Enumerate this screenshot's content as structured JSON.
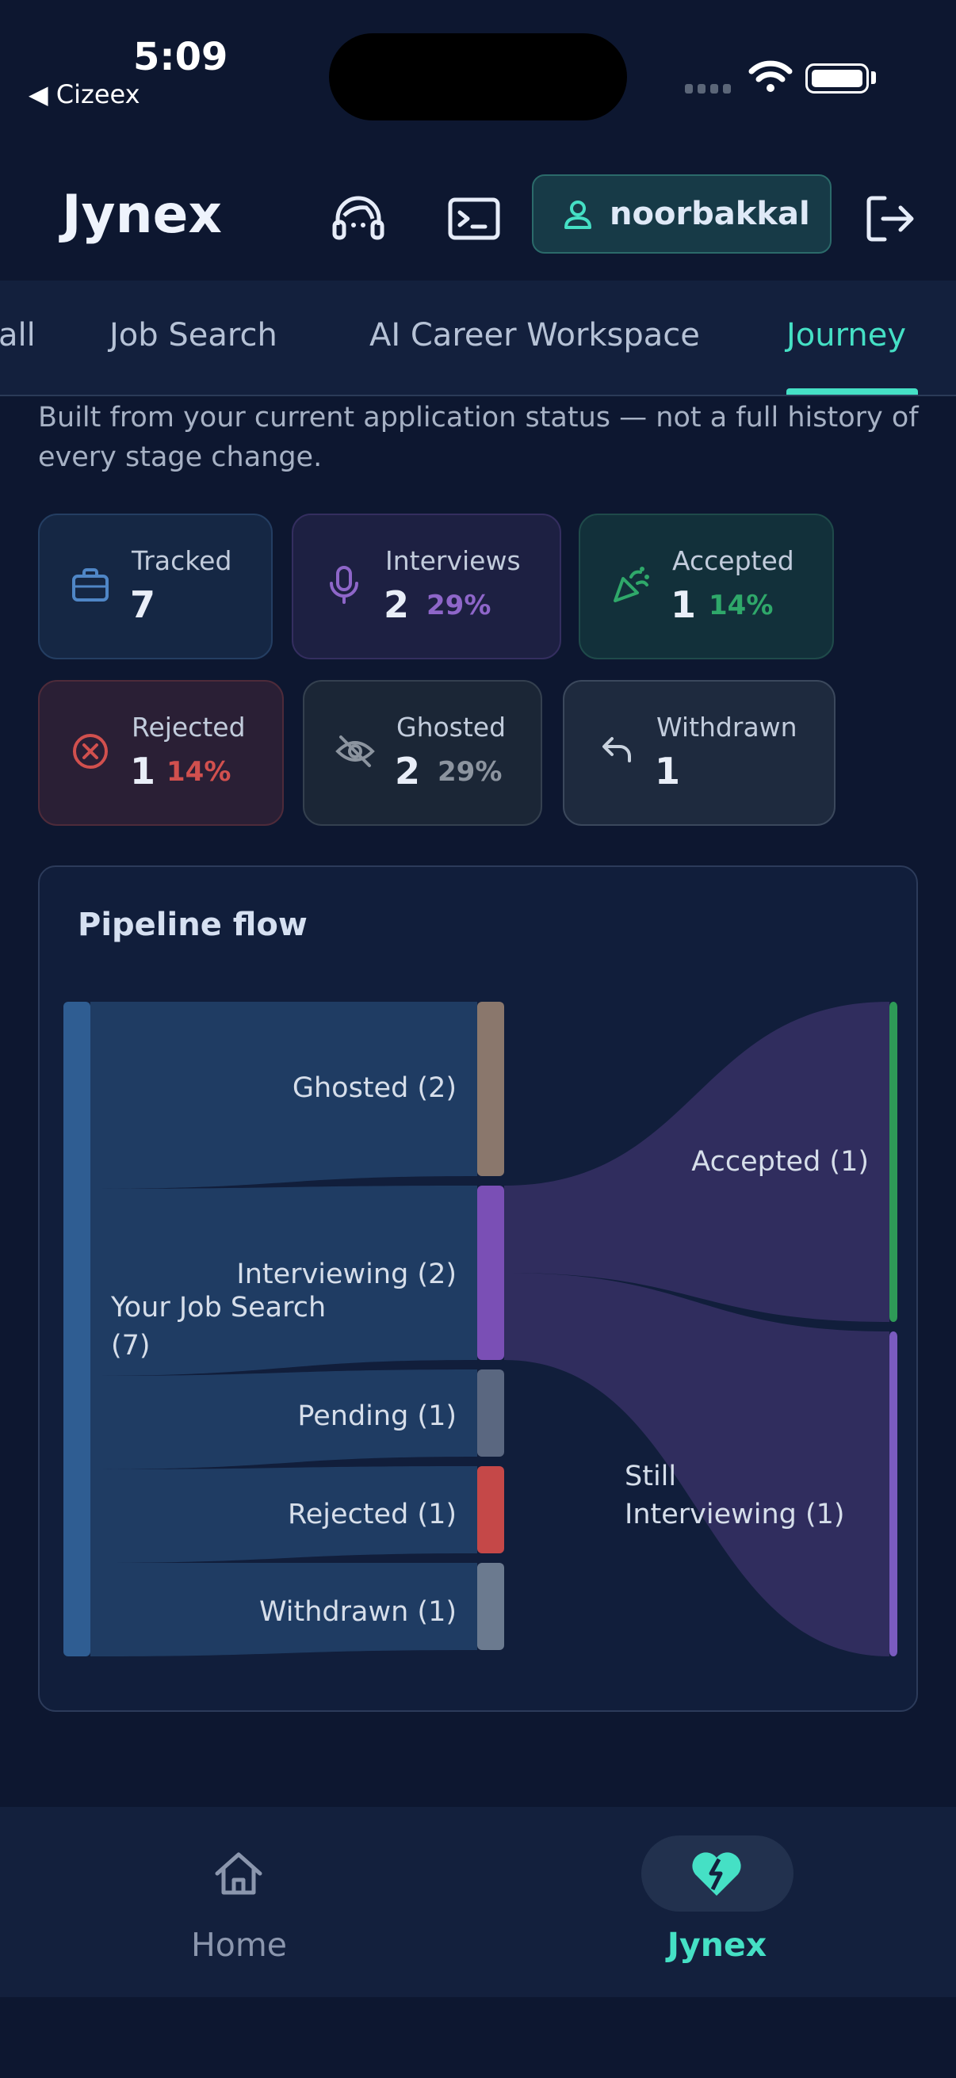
{
  "status_bar": {
    "time": "5:09",
    "back_app": "◀ Cizeex"
  },
  "header": {
    "app_name": "Jynex",
    "user_name": "noorbakkal"
  },
  "tabs": [
    {
      "label": "all"
    },
    {
      "label": "Job Search"
    },
    {
      "label": "AI Career Workspace"
    },
    {
      "label": "Journey",
      "active": true
    }
  ],
  "intro_text": "Built from your current application status — not a full history of every stage change.",
  "stats": [
    {
      "label": "Tracked",
      "value": "7",
      "pct": "",
      "icon": "briefcase-icon",
      "color": "#4f86c6"
    },
    {
      "label": "Interviews",
      "value": "2",
      "pct": "29%",
      "icon": "microphone-icon",
      "color": "#8e66c9"
    },
    {
      "label": "Accepted",
      "value": "1",
      "pct": "14%",
      "icon": "party-popper-icon",
      "color": "#2fa86a"
    },
    {
      "label": "Rejected",
      "value": "1",
      "pct": "14%",
      "icon": "x-circle-icon",
      "color": "#d1504e"
    },
    {
      "label": "Ghosted",
      "value": "2",
      "pct": "29%",
      "icon": "eye-off-icon",
      "color": "#8c949f"
    },
    {
      "label": "Withdrawn",
      "value": "1",
      "pct": "",
      "icon": "undo-icon",
      "color": "#c9d2de"
    }
  ],
  "pipeline": {
    "title": "Pipeline flow",
    "chart_data": {
      "type": "sankey",
      "nodes": [
        {
          "id": "source",
          "label": "Your Job Search (7)",
          "value": 7,
          "color": "#2f5d92"
        },
        {
          "id": "ghosted",
          "label": "Ghosted (2)",
          "value": 2,
          "color": "#8a776c"
        },
        {
          "id": "interviewing",
          "label": "Interviewing (2)",
          "value": 2,
          "color": "#7a4fb5"
        },
        {
          "id": "pending",
          "label": "Pending (1)",
          "value": 1,
          "color": "#5a6780"
        },
        {
          "id": "rejected",
          "label": "Rejected (1)",
          "value": 1,
          "color": "#c54848"
        },
        {
          "id": "withdrawn",
          "label": "Withdrawn (1)",
          "value": 1,
          "color": "#6b7a8f"
        },
        {
          "id": "accepted",
          "label": "Accepted (1)",
          "value": 1,
          "color": "#2e9a57"
        },
        {
          "id": "still",
          "label": "Still Interviewing (1)",
          "value": 1,
          "color": "#7a5bbf"
        }
      ],
      "links": [
        {
          "source": "source",
          "target": "ghosted",
          "value": 2
        },
        {
          "source": "source",
          "target": "interviewing",
          "value": 2
        },
        {
          "source": "source",
          "target": "pending",
          "value": 1
        },
        {
          "source": "source",
          "target": "rejected",
          "value": 1
        },
        {
          "source": "source",
          "target": "withdrawn",
          "value": 1
        },
        {
          "source": "interviewing",
          "target": "accepted",
          "value": 1
        },
        {
          "source": "interviewing",
          "target": "still",
          "value": 1
        }
      ]
    }
  },
  "bottom_nav": [
    {
      "label": "Home",
      "icon": "home-icon",
      "active": false
    },
    {
      "label": "Jynex",
      "icon": "broken-heart-icon",
      "active": true
    }
  ]
}
